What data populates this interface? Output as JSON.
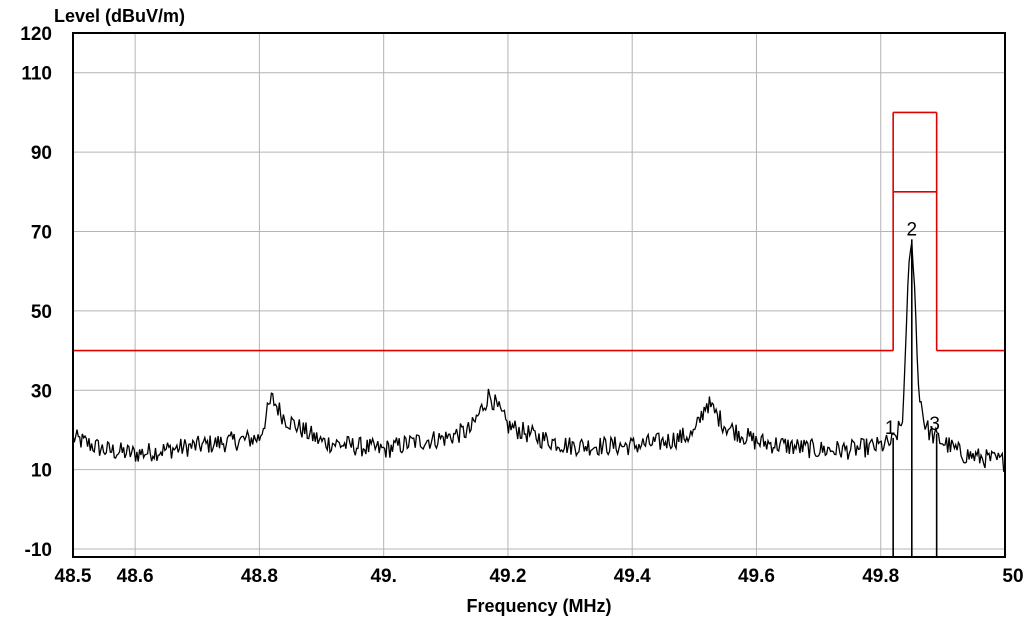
{
  "chart_data": {
    "type": "line",
    "ylabel": "Level (dBuV/m)",
    "xlabel": "Frequency (MHz)",
    "xlim": [
      48.5,
      50.0
    ],
    "ylim": [
      -12,
      120
    ],
    "grid": true,
    "x_ticks": [
      {
        "value": 48.5,
        "label": "48.5"
      },
      {
        "value": 48.6,
        "label": "48.6"
      },
      {
        "value": 48.8,
        "label": "48.8"
      },
      {
        "value": 49.0,
        "label": "49."
      },
      {
        "value": 49.2,
        "label": "49.2"
      },
      {
        "value": 49.4,
        "label": "49.4"
      },
      {
        "value": 49.6,
        "label": "49.6"
      },
      {
        "value": 49.8,
        "label": "49.8"
      },
      {
        "value": 50.0,
        "label": "50"
      }
    ],
    "y_ticks": [
      {
        "value": 120,
        "label": "120"
      },
      {
        "value": 110,
        "label": "110"
      },
      {
        "value": 90,
        "label": "90"
      },
      {
        "value": 70,
        "label": "70"
      },
      {
        "value": 50,
        "label": "50"
      },
      {
        "value": 30,
        "label": "30"
      },
      {
        "value": 10,
        "label": "10"
      },
      {
        "value": -10,
        "label": "-10"
      }
    ],
    "colors": {
      "trace": "#000000",
      "limit": "#e00000",
      "grid": "#b4b4b4"
    },
    "trace": {
      "baseline": [
        [
          48.5,
          18
        ],
        [
          48.55,
          15
        ],
        [
          48.6,
          14
        ],
        [
          48.65,
          15
        ],
        [
          48.7,
          16
        ],
        [
          48.75,
          17
        ],
        [
          48.8,
          18
        ],
        [
          48.82,
          28
        ],
        [
          48.84,
          23
        ],
        [
          48.87,
          20
        ],
        [
          48.9,
          17
        ],
        [
          48.95,
          16
        ],
        [
          49.0,
          15
        ],
        [
          49.05,
          17
        ],
        [
          49.1,
          18
        ],
        [
          49.14,
          20
        ],
        [
          49.17,
          29
        ],
        [
          49.2,
          21
        ],
        [
          49.25,
          18
        ],
        [
          49.3,
          16
        ],
        [
          49.35,
          16
        ],
        [
          49.4,
          16
        ],
        [
          49.45,
          17
        ],
        [
          49.5,
          19
        ],
        [
          49.52,
          27
        ],
        [
          49.55,
          21
        ],
        [
          49.6,
          17
        ],
        [
          49.65,
          16
        ],
        [
          49.7,
          15
        ],
        [
          49.75,
          15
        ],
        [
          49.8,
          16
        ],
        [
          49.82,
          17
        ],
        [
          49.835,
          22
        ],
        [
          49.84,
          40
        ],
        [
          49.845,
          62
        ],
        [
          49.85,
          67
        ],
        [
          49.855,
          55
        ],
        [
          49.86,
          32
        ],
        [
          49.87,
          22
        ],
        [
          49.88,
          19
        ],
        [
          49.9,
          17
        ],
        [
          49.93,
          14
        ],
        [
          49.96,
          13
        ],
        [
          50.0,
          12
        ]
      ],
      "noise_amplitude": 2.5
    },
    "limit_line": {
      "segments": [
        [
          [
            48.5,
            40
          ],
          [
            49.82,
            40
          ]
        ],
        [
          [
            49.82,
            40
          ],
          [
            49.82,
            100
          ]
        ],
        [
          [
            49.82,
            100
          ],
          [
            49.89,
            100
          ]
        ],
        [
          [
            49.89,
            100
          ],
          [
            49.89,
            40
          ]
        ],
        [
          [
            49.89,
            40
          ],
          [
            50.0,
            40
          ]
        ],
        [
          [
            49.82,
            80
          ],
          [
            49.89,
            80
          ]
        ]
      ]
    },
    "markers": [
      {
        "label": "1",
        "x": 49.82,
        "y": 18
      },
      {
        "label": "2",
        "x": 49.85,
        "y": 68
      },
      {
        "label": "3",
        "x": 49.89,
        "y": 19
      }
    ]
  }
}
